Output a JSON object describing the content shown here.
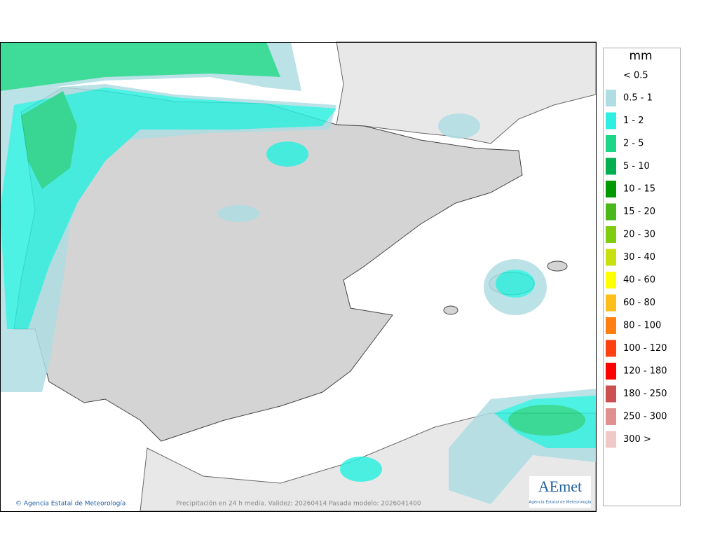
{
  "legend": {
    "title": "mm",
    "items": [
      {
        "label": "< 0.5"
      },
      {
        "label": "0.5 - 1",
        "color": "#aedde3"
      },
      {
        "label": "1 - 2",
        "color": "#2ff0e0"
      },
      {
        "label": "2 - 5",
        "color": "#1ed688"
      },
      {
        "label": "5 - 10",
        "color": "#00b050"
      },
      {
        "label": "10 - 15",
        "color": "#009a00"
      },
      {
        "label": "15 - 20",
        "color": "#4bb81a"
      },
      {
        "label": "20 - 30",
        "color": "#80cc10"
      },
      {
        "label": "30 - 40",
        "color": "#c8e010"
      },
      {
        "label": "40 - 60",
        "color": "#ffff00"
      },
      {
        "label": "60 - 80",
        "color": "#ffbf1a"
      },
      {
        "label": "80 - 100",
        "color": "#ff8010"
      },
      {
        "label": "100 - 120",
        "color": "#ff4010"
      },
      {
        "label": "120 - 180",
        "color": "#ff0000"
      },
      {
        "label": "180 - 250",
        "color": "#cc5050"
      },
      {
        "label": "250 - 300",
        "color": "#e09090"
      },
      {
        "label": "300 >",
        "color": "#f0c8c8"
      }
    ]
  },
  "footer": {
    "credit": "© Agencia Estatal de Meteorología",
    "caption": "Precipitación en 24 h media. Validez: 20260414 Pasada modelo: 2026041400"
  },
  "logo": {
    "name": "AEmet",
    "subtitle": "Agencia Estatal de Meteorología"
  }
}
